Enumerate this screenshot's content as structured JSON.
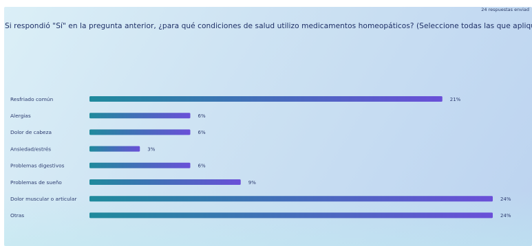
{
  "header": {
    "responses_label": "24 respuestas enviad",
    "question": "Si respondió \"Sí\" en la pregunta anterior, ¿para qué condiciones de salud utilizo medicamentos homeopáticos? (Seleccione todas las que apliquen)"
  },
  "colors": {
    "bar_start": "#1f8a9c",
    "bar_end": "#6a4fd8",
    "label_text": "#2b3a6e",
    "value_text": "#2b3a6e"
  },
  "chart_data": {
    "type": "bar",
    "orientation": "horizontal",
    "title": "",
    "xlabel": "",
    "ylabel": "",
    "xlim": [
      0,
      24
    ],
    "grid": false,
    "categories": [
      "Resfriado común",
      "Alergias",
      "Dolor de cabeza",
      "Ansiedad/estrés",
      "Problemas digestivos",
      "Problemas de sueño",
      "Dolor muscular o articular",
      "Otras"
    ],
    "values": [
      21,
      6,
      6,
      3,
      6,
      9,
      24,
      24
    ],
    "value_labels": [
      "21%",
      "6%",
      "6%",
      "3%",
      "6%",
      "9%",
      "24%",
      "24%"
    ]
  }
}
